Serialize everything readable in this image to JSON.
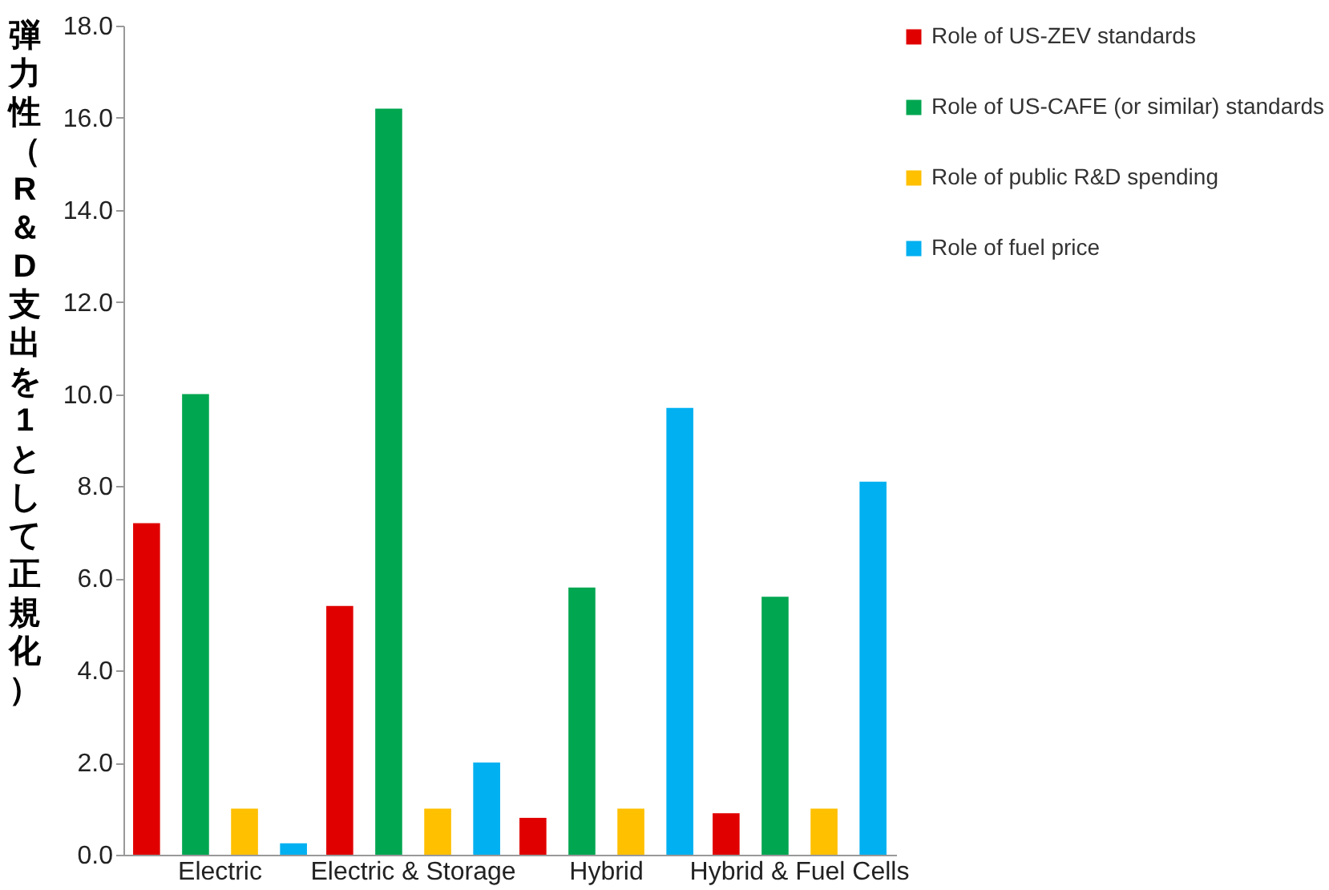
{
  "chart_data": {
    "type": "bar",
    "ylabel": "弾力性（R＆D支出を1として正規化）",
    "categories": [
      "Electric",
      "Electric & Storage",
      "Hybrid",
      "Hybrid & Fuel Cells"
    ],
    "series": [
      {
        "name": "Role of US-ZEV standards",
        "color": "#e00000",
        "values": [
          7.2,
          5.4,
          0.8,
          0.9
        ]
      },
      {
        "name": "Role of US-CAFE (or similar) standards",
        "color": "#00a650",
        "values": [
          10.0,
          16.2,
          5.8,
          5.6
        ]
      },
      {
        "name": "Role of public R&D spending",
        "color": "#ffc000",
        "values": [
          1.0,
          1.0,
          1.0,
          1.0
        ]
      },
      {
        "name": "Role of fuel price",
        "color": "#00b0f0",
        "values": [
          0.25,
          2.0,
          9.7,
          8.1
        ]
      }
    ],
    "ylim": [
      0,
      18
    ],
    "yticks": [
      {
        "value": 0,
        "label": "0.0"
      },
      {
        "value": 2,
        "label": "2.0"
      },
      {
        "value": 4,
        "label": "4.0"
      },
      {
        "value": 6,
        "label": "6.0"
      },
      {
        "value": 8,
        "label": "8.0"
      },
      {
        "value": 10,
        "label": "10.0"
      },
      {
        "value": 12,
        "label": "12.0"
      },
      {
        "value": 14,
        "label": "14.0"
      },
      {
        "value": 16,
        "label": "16.0"
      },
      {
        "value": 18,
        "label": "18.0"
      }
    ],
    "grid": false,
    "legend": "top right"
  }
}
